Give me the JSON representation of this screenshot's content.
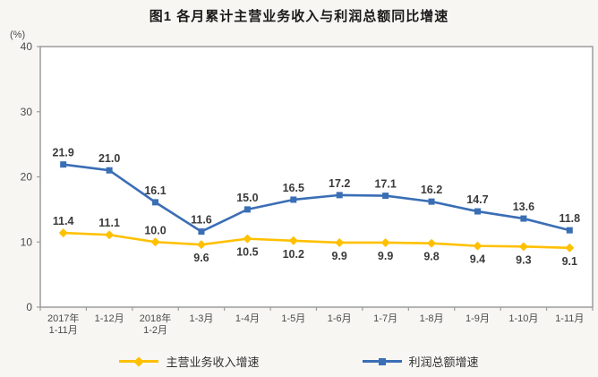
{
  "title": "图1 各月累计主营业务收入与利润总额同比增速",
  "y_axis_unit": "(%)",
  "chart_data": {
    "type": "line",
    "title": "图1 各月累计主营业务收入与利润总额同比增速",
    "ylabel": "(%)",
    "ylim": [
      0,
      40
    ],
    "yticks": [
      0,
      10,
      20,
      30,
      40
    ],
    "grid": false,
    "legend_position": "bottom",
    "axis_color": "#9c9c9c",
    "tick_label_color": "#4a4a4a",
    "data_label_color": "#3a3a3a",
    "plot_background": "#ffffff",
    "categories": [
      "2017年\n1-11月",
      "1-12月",
      "2018年\n1-2月",
      "1-3月",
      "1-4月",
      "1-5月",
      "1-6月",
      "1-7月",
      "1-8月",
      "1-9月",
      "1-10月",
      "1-11月"
    ],
    "series": [
      {
        "name": "主营业务收入增速",
        "color": "#FFC000",
        "marker": "diamond",
        "values": [
          11.4,
          11.1,
          10.0,
          9.6,
          10.5,
          10.2,
          9.9,
          9.9,
          9.8,
          9.4,
          9.3,
          9.1
        ],
        "label_positions": [
          "above",
          "above",
          "above",
          "below",
          "below",
          "below",
          "below",
          "below",
          "below",
          "below",
          "below",
          "below"
        ]
      },
      {
        "name": "利润总额增速",
        "color": "#3A6EB5",
        "marker": "square",
        "values": [
          21.9,
          21.0,
          16.1,
          11.6,
          15.0,
          16.5,
          17.2,
          17.1,
          16.2,
          14.7,
          13.6,
          11.8
        ],
        "label_positions": [
          "above",
          "above",
          "above",
          "above",
          "above",
          "above",
          "above",
          "above",
          "above",
          "above",
          "above",
          "above"
        ]
      }
    ]
  }
}
